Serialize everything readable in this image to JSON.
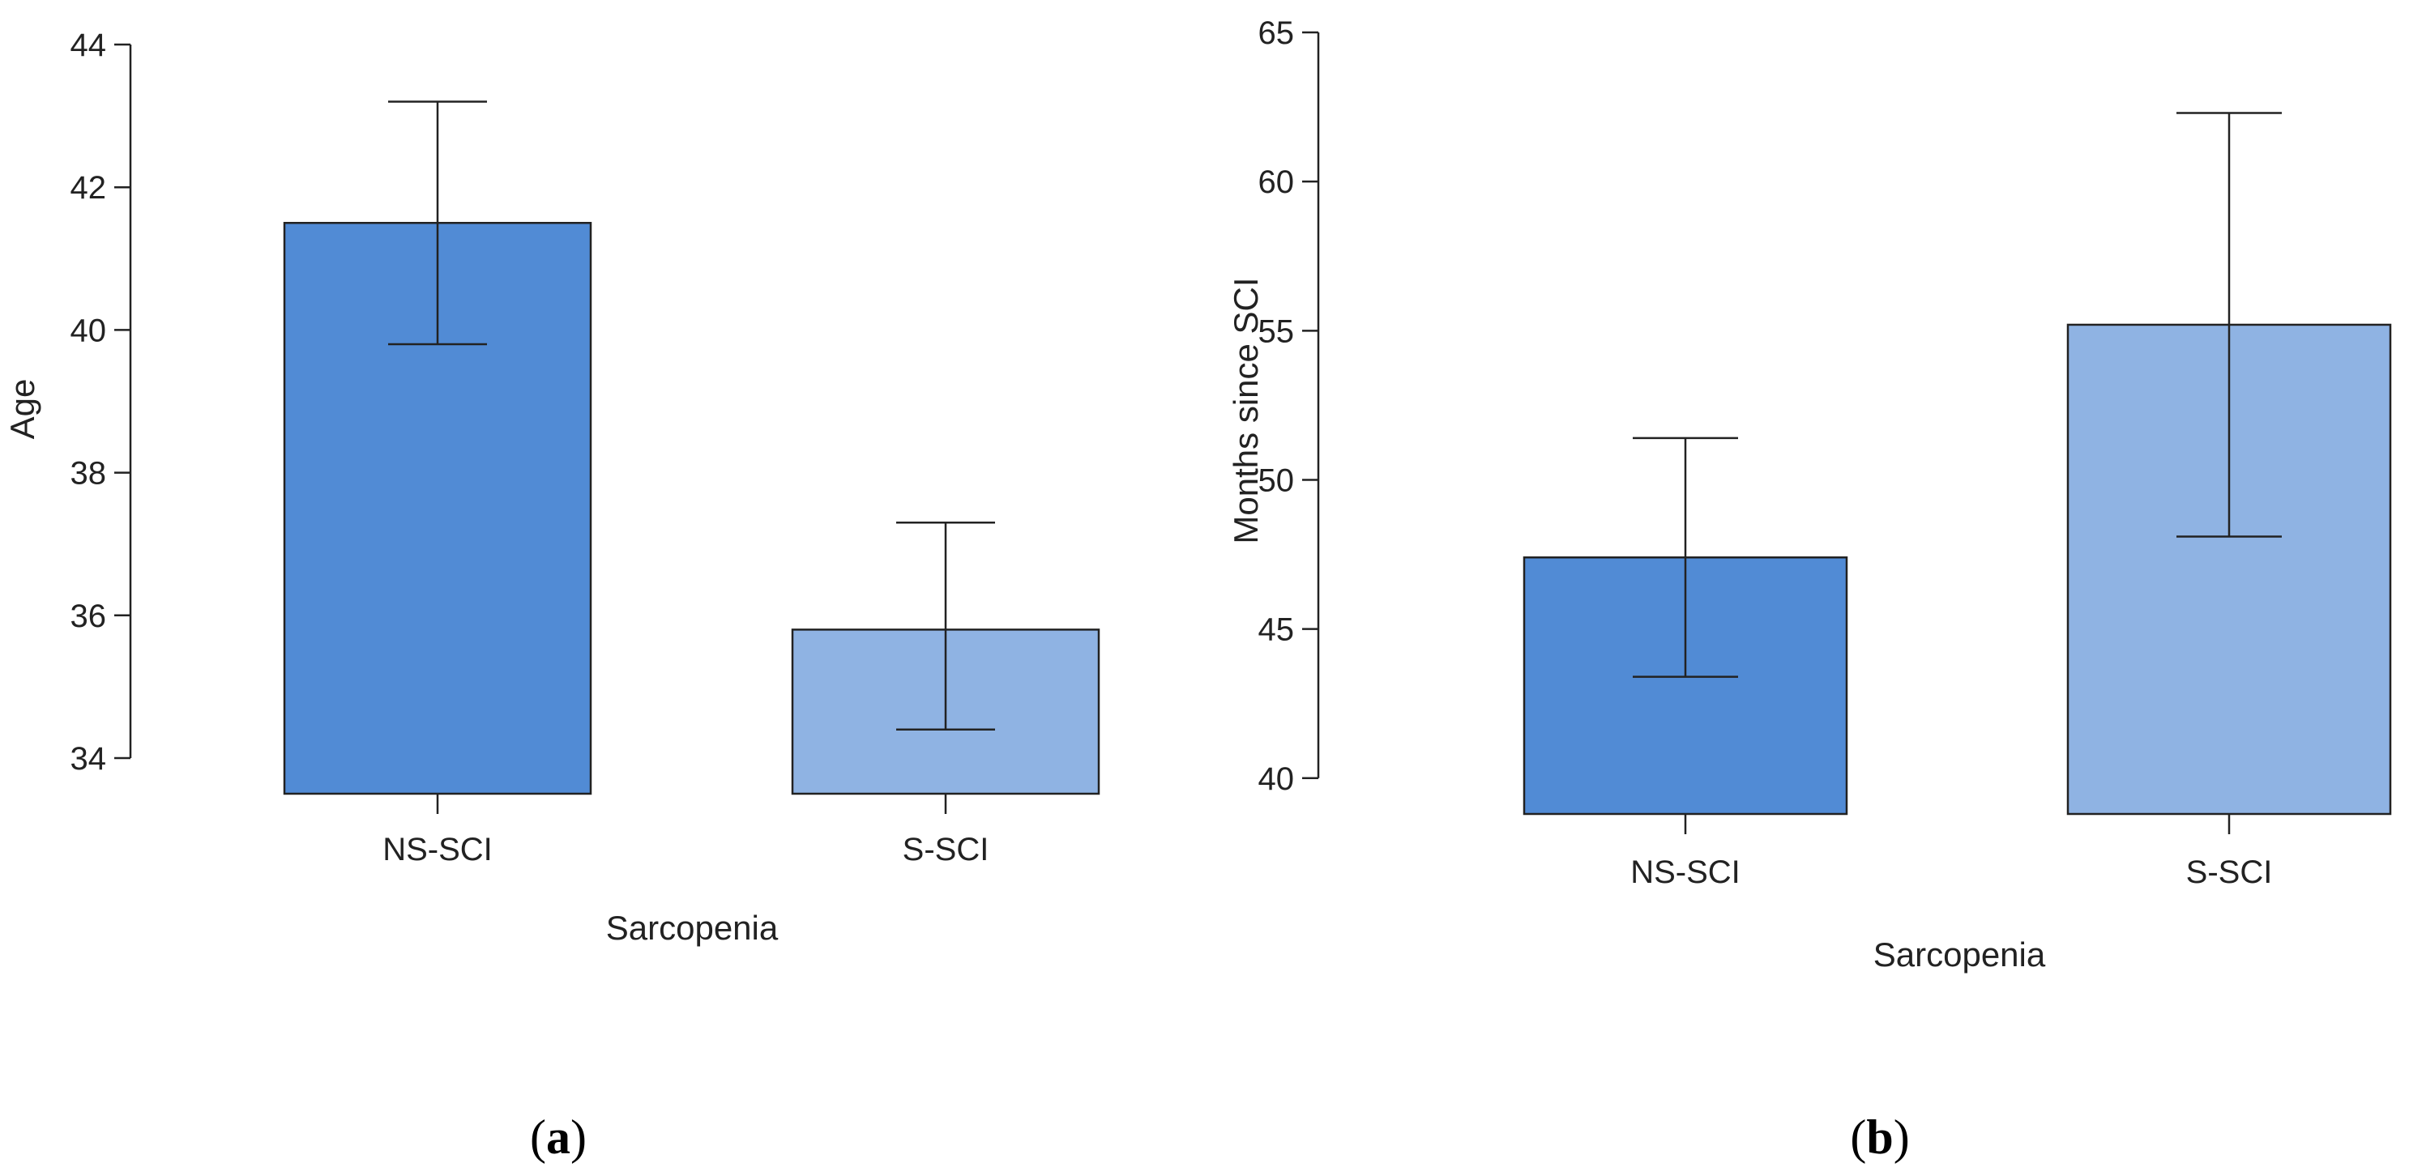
{
  "colors": {
    "bar_dark": "#518bd5",
    "bar_light": "#8fb3e3",
    "stroke": "#222222"
  },
  "chart_data": [
    {
      "type": "bar",
      "panel_label": {
        "open": "(",
        "letter": "a",
        "close": ")"
      },
      "title": "",
      "xlabel": "Sarcopenia",
      "ylabel": "Age",
      "categories": [
        "NS-SCI",
        "S-SCI"
      ],
      "values": [
        41.5,
        35.8
      ],
      "error_upper": [
        43.2,
        37.3
      ],
      "error_lower": [
        39.8,
        34.4
      ],
      "ylim": [
        33.5,
        44
      ],
      "yticks": [
        34,
        36,
        38,
        40,
        42,
        44
      ],
      "ytick_labels": [
        "34",
        "36",
        "38",
        "40",
        "42",
        "44"
      ],
      "grid": false
    },
    {
      "type": "bar",
      "panel_label": {
        "open": "(",
        "letter": "b",
        "close": ")"
      },
      "title": "",
      "xlabel": "Sarcopenia",
      "ylabel": "Months since SCI",
      "categories": [
        "NS-SCI",
        "S-SCI"
      ],
      "values": [
        47.4,
        55.2
      ],
      "error_upper": [
        51.4,
        62.3
      ],
      "error_lower": [
        43.4,
        48.1
      ],
      "ylim": [
        38.8,
        65
      ],
      "yticks": [
        40,
        45,
        50,
        55,
        60,
        65
      ],
      "ytick_labels": [
        "40",
        "45",
        "50",
        "55",
        "60",
        "65"
      ],
      "grid": false
    }
  ]
}
